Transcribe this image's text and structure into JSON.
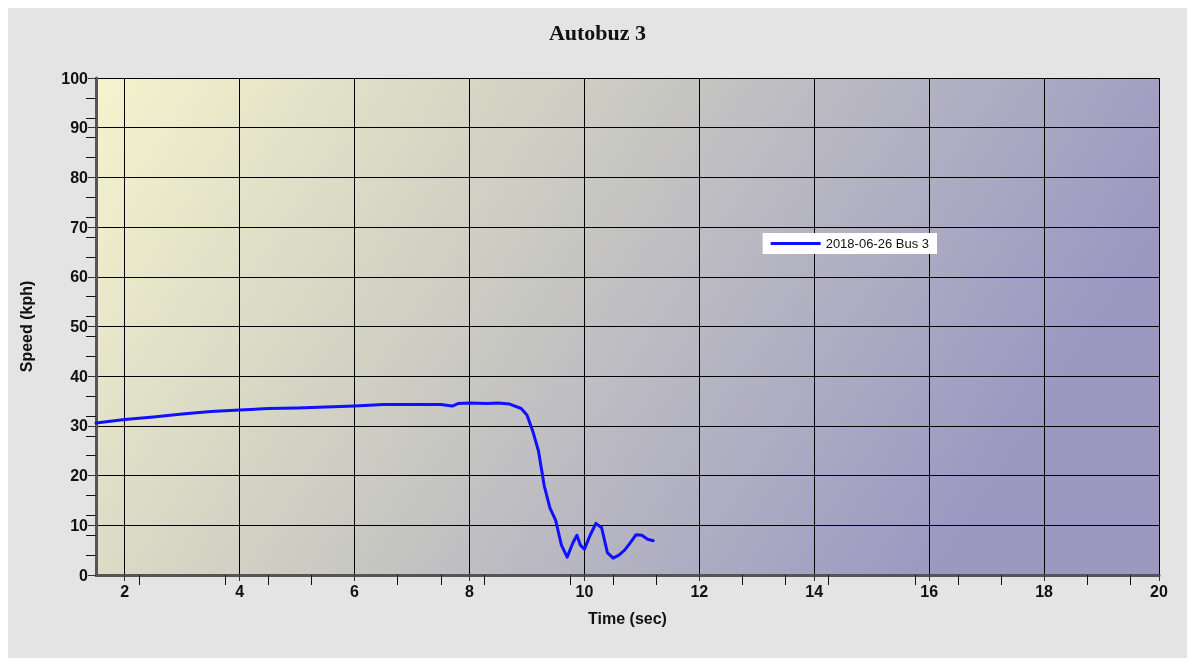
{
  "chart_data": {
    "type": "line",
    "title": "Autobuz 3",
    "xlabel": "Time (sec)",
    "ylabel": "Speed (kph)",
    "xlim": [
      1.5,
      20
    ],
    "xticks": [
      2,
      4,
      6,
      8,
      10,
      12,
      14,
      16,
      18,
      20
    ],
    "ylim": [
      0,
      100
    ],
    "yticks": [
      0,
      10,
      20,
      30,
      40,
      50,
      60,
      70,
      80,
      90,
      100
    ],
    "grid": true,
    "legend": "right",
    "marker": "none",
    "line_style": "solid",
    "series": [
      {
        "name": "2018-06-26 Bus 3",
        "color": "#1010ff",
        "x": [
          1.5,
          2,
          2.5,
          3,
          3.5,
          4,
          4.5,
          5,
          5.5,
          6,
          6.5,
          7,
          7.5,
          7.7,
          7.8,
          8,
          8.3,
          8.5,
          8.7,
          8.9,
          9.0,
          9.1,
          9.2,
          9.3,
          9.4,
          9.5,
          9.6,
          9.7,
          9.8,
          9.87,
          9.93,
          10.0,
          10.1,
          10.2,
          10.3,
          10.4,
          10.5,
          10.6,
          10.7,
          10.8,
          10.9,
          11.0,
          11.1,
          11.2
        ],
        "values": [
          30.6,
          31.3,
          31.8,
          32.4,
          32.9,
          33.2,
          33.5,
          33.6,
          33.8,
          34,
          34.3,
          34.3,
          34.3,
          34,
          34.5,
          34.6,
          34.5,
          34.6,
          34.4,
          33.5,
          32.2,
          29,
          25,
          18,
          13.5,
          11,
          6,
          3.6,
          6.5,
          8,
          6,
          5.2,
          8,
          10.4,
          9.5,
          4.5,
          3.4,
          4,
          5,
          6.5,
          8.1,
          8,
          7.2,
          6.9
        ]
      }
    ]
  }
}
